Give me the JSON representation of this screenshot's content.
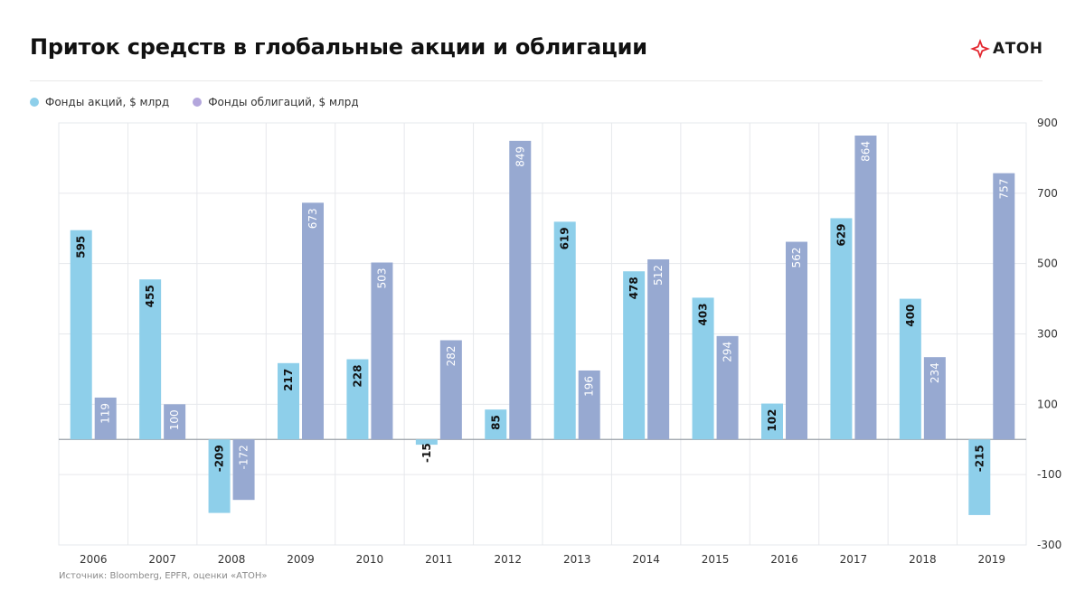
{
  "header": {
    "title": "Приток средств в глобальные акции и облигации",
    "logo_text": "АТОН"
  },
  "legend": [
    {
      "label": "Фонды акций, $ млрд",
      "color": "#8ecfea"
    },
    {
      "label": "Фонды облигаций, $ млрд",
      "color": "#b3a6dc"
    }
  ],
  "source": "Источник: Bloomberg, EPFR, оценки «АТОН»",
  "colors": {
    "equity_bar": "#8ecfea",
    "bond_bar": "#97a9d1",
    "grid": "#e6e8ec",
    "axis": "#9aa0a8",
    "logo_red": "#e3262e"
  },
  "chart_data": {
    "type": "bar",
    "categories": [
      "2006",
      "2007",
      "2008",
      "2009",
      "2010",
      "2011",
      "2012",
      "2013",
      "2014",
      "2015",
      "2016",
      "2017",
      "2018",
      "2019"
    ],
    "series": [
      {
        "name": "Фонды акций, $ млрд",
        "values": [
          595,
          455,
          -209,
          217,
          228,
          -15,
          85,
          619,
          478,
          403,
          102,
          629,
          400,
          -215
        ],
        "labels": [
          "595",
          "455",
          "-209",
          "217",
          "228",
          "-15",
          "85",
          "619",
          "478",
          "403",
          "102",
          "629",
          "400",
          "-215"
        ]
      },
      {
        "name": "Фонды облигаций, $ млрд",
        "values": [
          119,
          100,
          -172,
          673,
          503,
          282,
          849,
          196,
          512,
          294,
          562,
          864,
          234,
          757
        ],
        "labels": [
          "119",
          "100",
          "-172",
          "673",
          "503",
          "282",
          "849",
          "196",
          "512",
          "294",
          "562",
          "864",
          "234",
          "757"
        ]
      }
    ],
    "yticks": [
      900,
      700,
      500,
      300,
      100,
      -100,
      -300
    ],
    "ytick_labels": [
      "900",
      "700",
      "500",
      "300",
      "100",
      "-100",
      "-300"
    ],
    "ylim": [
      -300,
      900
    ],
    "y_axis_position": "right",
    "grid": true,
    "legend_position": "top-left"
  }
}
